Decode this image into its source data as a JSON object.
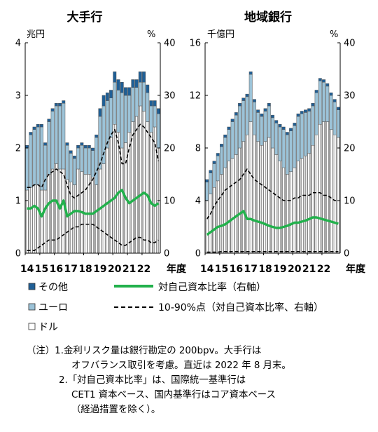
{
  "charts": {
    "left": {
      "title": "大手行",
      "left_unit": "兆円",
      "right_unit": "%",
      "year_suffix": "年度"
    },
    "right": {
      "title": "地域銀行",
      "left_unit": "千億円",
      "right_unit": "%",
      "year_suffix": "年度"
    }
  },
  "legend": {
    "other": "その他",
    "euro": "ユーロ",
    "dollar": "ドル",
    "cap_ratio": "対自己資本比率（右軸）",
    "band": "10-90%点（対自己資本比率、右軸）"
  },
  "notes": {
    "line1": "（注）1.金利リスク量は銀行勘定の 200bpv。大手行は",
    "line2": "オフバランス取引を考慮。直近は 2022 年 8 月末。",
    "line3": "2.「対自己資本比率」は、国際統一基準行は",
    "line4": "CET1 資本ベース、国内基準行はコア資本ベース",
    "line5": "（経過措置を除く）。"
  },
  "colors": {
    "other": "#1f5f96",
    "euro": "#9cc3d8",
    "dollar": "#ffffff",
    "cap_ratio": "#22b14c",
    "band": "#000000"
  },
  "chart_data": [
    {
      "type": "bar",
      "title": "大手行",
      "stacked": true,
      "x_tick_labels": [
        "14",
        "15",
        "16",
        "17",
        "18",
        "19",
        "20",
        "21",
        "22"
      ],
      "x_start_fiscal_year": 2014,
      "periods_per_year": 4,
      "ylabel_left": "兆円",
      "ylim_left": [
        0,
        4
      ],
      "yticks_left": [
        0,
        1,
        2,
        3,
        4
      ],
      "ylabel_right": "%",
      "ylim_right": [
        0,
        40
      ],
      "yticks_right": [
        0,
        10,
        20,
        30,
        40
      ],
      "xlabel": "年度",
      "series": [
        {
          "name": "ドル",
          "axis": "left",
          "values": [
            1.2,
            1.25,
            1.3,
            1.3,
            1.2,
            1.2,
            1.5,
            1.6,
            1.7,
            1.6,
            1.6,
            1.4,
            1.35,
            1.3,
            1.6,
            1.55,
            1.5,
            1.5,
            1.45,
            1.3,
            1.6,
            1.7,
            2.0,
            2.2,
            2.45,
            2.3,
            2.0,
            2.1,
            2.3,
            2.5,
            2.6,
            2.8,
            2.7,
            2.5,
            2.3,
            2.4,
            2.0
          ]
        },
        {
          "name": "ユーロ",
          "axis": "left",
          "values": [
            0.8,
            1.0,
            1.05,
            1.1,
            1.2,
            0.85,
            1.0,
            1.1,
            1.1,
            1.2,
            1.25,
            0.65,
            0.55,
            0.5,
            0.4,
            0.5,
            0.5,
            0.5,
            0.5,
            0.9,
            1.0,
            1.1,
            0.9,
            0.75,
            0.8,
            0.8,
            1.05,
            0.9,
            0.7,
            0.65,
            0.55,
            0.45,
            0.55,
            0.55,
            0.5,
            0.4,
            0.65
          ]
        },
        {
          "name": "その他",
          "axis": "left",
          "values": [
            0.05,
            0.05,
            0.05,
            0.05,
            0.05,
            0.05,
            0.05,
            0.05,
            0.05,
            0.05,
            0.05,
            0.05,
            0.05,
            0.05,
            0.05,
            0.05,
            0.05,
            0.05,
            0.05,
            0.05,
            0.15,
            0.2,
            0.15,
            0.15,
            0.2,
            0.2,
            0.2,
            0.15,
            0.15,
            0.15,
            0.15,
            0.2,
            0.2,
            0.15,
            0.1,
            0.1,
            0.1
          ]
        },
        {
          "name": "対自己資本比率（右軸）",
          "axis": "right",
          "type": "line",
          "values": [
            8.5,
            8.5,
            9.0,
            8.5,
            7.0,
            8.5,
            9.5,
            10.0,
            10.0,
            8.5,
            10.0,
            7.0,
            7.5,
            8.0,
            8.0,
            7.8,
            7.5,
            7.5,
            7.5,
            8.0,
            8.5,
            9.0,
            9.5,
            10.0,
            10.5,
            11.5,
            12.0,
            10.5,
            9.5,
            10.0,
            10.5,
            11.0,
            11.5,
            11.0,
            9.5,
            9.0,
            9.5
          ]
        },
        {
          "name": "10-90%点（対自己資本比率、右軸）",
          "axis": "right",
          "type": "line",
          "values": [
            12.5,
            12.5,
            13.0,
            13.0,
            12.5,
            14.0,
            15.0,
            15.5,
            16.0,
            15.5,
            15.0,
            13.0,
            11.0,
            10.5,
            11.0,
            11.5,
            12.0,
            13.0,
            14.0,
            15.5,
            17.0,
            19.0,
            21.0,
            22.5,
            23.5,
            21.0,
            17.0,
            17.0,
            20.0,
            22.5,
            23.5,
            24.5,
            24.0,
            23.0,
            22.0,
            21.0,
            17.5
          ]
        },
        {
          "name": "10-90%点（対自己資本比率、右軸）",
          "axis": "right",
          "type": "line",
          "values": [
            0.5,
            0.5,
            0.5,
            1.0,
            1.5,
            2.0,
            2.5,
            2.5,
            2.5,
            3.0,
            3.5,
            4.0,
            4.5,
            5.0,
            5.0,
            5.5,
            5.5,
            5.5,
            5.5,
            5.0,
            4.5,
            4.0,
            3.5,
            3.0,
            2.5,
            2.0,
            1.5,
            1.5,
            2.0,
            2.5,
            3.0,
            3.0,
            2.5,
            2.5,
            2.0,
            2.0,
            2.5
          ]
        }
      ]
    },
    {
      "type": "bar",
      "title": "地域銀行",
      "stacked": true,
      "x_tick_labels": [
        "14",
        "15",
        "16",
        "17",
        "18",
        "19",
        "20",
        "21",
        "22"
      ],
      "x_start_fiscal_year": 2014,
      "periods_per_year": 4,
      "ylabel_left": "千億円",
      "ylim_left": [
        0,
        16
      ],
      "yticks_left": [
        0,
        4,
        8,
        12,
        16
      ],
      "ylabel_right": "%",
      "ylim_right": [
        0,
        40
      ],
      "yticks_right": [
        0,
        10,
        20,
        30,
        40
      ],
      "xlabel": "年度",
      "series": [
        {
          "name": "ドル",
          "axis": "left",
          "values": [
            4.0,
            4.5,
            5.0,
            5.5,
            6.0,
            6.5,
            7.0,
            7.2,
            7.5,
            8.0,
            8.5,
            9.0,
            10.0,
            9.0,
            8.5,
            8.2,
            8.5,
            8.8,
            8.0,
            7.5,
            7.0,
            6.5,
            6.0,
            6.2,
            6.5,
            7.0,
            7.2,
            7.4,
            7.6,
            8.2,
            9.0,
            9.8,
            10.0,
            10.0,
            9.4,
            9.0,
            8.8
          ]
        },
        {
          "name": "ユーロ",
          "axis": "left",
          "values": [
            1.4,
            1.6,
            1.8,
            1.9,
            2.1,
            2.3,
            2.4,
            2.8,
            3.0,
            3.2,
            3.1,
            2.9,
            3.6,
            2.5,
            2.2,
            2.2,
            2.3,
            2.4,
            2.3,
            2.4,
            2.6,
            2.9,
            3.0,
            3.1,
            3.2,
            3.4,
            3.4,
            3.3,
            3.2,
            3.0,
            3.2,
            3.3,
            3.0,
            2.7,
            2.6,
            2.5,
            2.1
          ]
        },
        {
          "name": "その他",
          "axis": "left",
          "values": [
            0.2,
            0.2,
            0.2,
            0.2,
            0.2,
            0.2,
            0.2,
            0.2,
            0.2,
            0.2,
            0.2,
            0.2,
            0.2,
            0.2,
            0.2,
            0.2,
            0.2,
            0.2,
            0.2,
            0.2,
            0.2,
            0.2,
            0.2,
            0.2,
            0.2,
            0.2,
            0.2,
            0.2,
            0.2,
            0.2,
            0.2,
            0.2,
            0.2,
            0.2,
            0.2,
            0.2,
            0.2
          ]
        },
        {
          "name": "対自己資本比率（右軸）",
          "axis": "right",
          "type": "line",
          "values": [
            3.5,
            4.0,
            4.5,
            5.0,
            5.2,
            5.5,
            6.0,
            6.5,
            7.0,
            7.5,
            8.0,
            6.5,
            6.5,
            6.2,
            6.0,
            5.8,
            5.5,
            5.2,
            5.0,
            4.8,
            4.8,
            5.0,
            5.2,
            5.5,
            5.8,
            5.8,
            6.0,
            6.2,
            6.5,
            6.8,
            6.8,
            6.6,
            6.4,
            6.2,
            6.0,
            5.8,
            5.6
          ]
        },
        {
          "name": "10-90%点（対自己資本比率、右軸）",
          "axis": "right",
          "type": "line",
          "values": [
            6.5,
            7.5,
            9.0,
            10.0,
            11.0,
            12.0,
            12.5,
            13.0,
            13.5,
            14.0,
            15.0,
            16.0,
            15.0,
            14.0,
            13.5,
            13.0,
            12.5,
            12.0,
            11.5,
            11.0,
            10.5,
            10.0,
            10.0,
            10.0,
            10.5,
            10.5,
            11.0,
            11.0,
            11.0,
            11.5,
            11.5,
            11.5,
            11.0,
            11.0,
            10.5,
            10.0,
            10.0
          ]
        },
        {
          "name": "10-90%点（対自己資本比率、右軸）",
          "axis": "right",
          "type": "line",
          "values": [
            0.2,
            0.2,
            0.2,
            0.2,
            0.3,
            0.3,
            0.3,
            0.3,
            0.3,
            0.3,
            0.3,
            0.3,
            0.3,
            0.3,
            0.3,
            0.3,
            0.3,
            0.3,
            0.3,
            0.3,
            0.3,
            0.3,
            0.3,
            0.3,
            0.3,
            0.3,
            0.3,
            0.3,
            0.3,
            0.3,
            0.3,
            0.3,
            0.3,
            0.3,
            0.3,
            0.3,
            0.3
          ]
        }
      ]
    }
  ]
}
